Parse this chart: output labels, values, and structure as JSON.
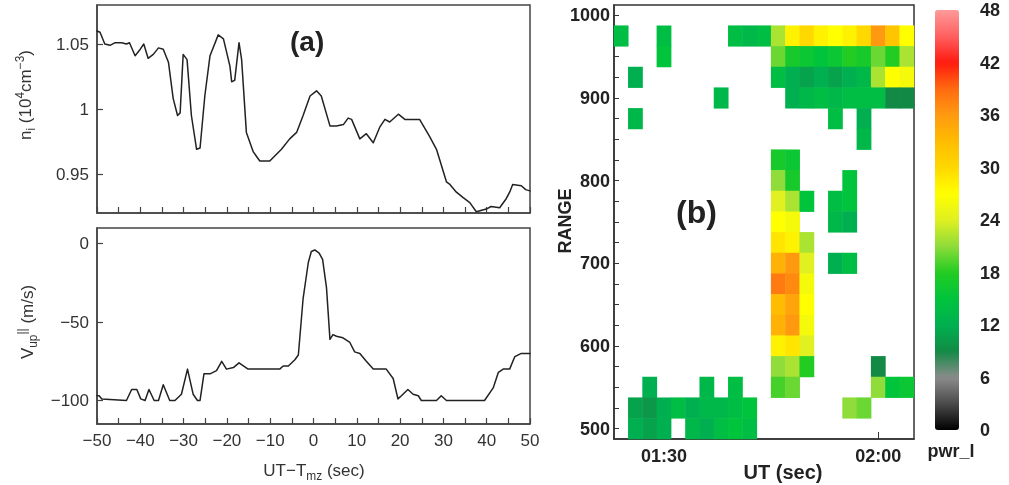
{
  "chart_data": [
    {
      "type": "line",
      "title": "(a)",
      "ylabel": "n$_{i}$ (10$^{4}$cm$^{−3}$)",
      "tick_labels": "y",
      "x": [
        -50,
        -49.3,
        -48.2,
        -47,
        -45.8,
        -44.3,
        -43.2,
        -42.5,
        -41.2,
        -40,
        -39.2,
        -38.2,
        -37,
        -35.8,
        -34.7,
        -33.5,
        -32.4,
        -31.4,
        -30.8,
        -30.1,
        -29.2,
        -28.2,
        -27,
        -26.2,
        -25.1,
        -23.9,
        -22,
        -20.8,
        -19.3,
        -18.9,
        -18.2,
        -17.2,
        -16.6,
        -15.5,
        -13.9,
        -12.4,
        -10.1,
        -7.4,
        -5.5,
        -3.9,
        -2.4,
        -0.8,
        0.7,
        1.8,
        3.8,
        5.3,
        6.9,
        8,
        8.8,
        10.7,
        12.2,
        13.8,
        15.3,
        16.5,
        17.6,
        19.6,
        21.1,
        23,
        24.5,
        26.8,
        28.4,
        30.7,
        31.5,
        33,
        34.5,
        36.1,
        37.6,
        39.9,
        41,
        43,
        44.5,
        45.3,
        46,
        48,
        49,
        50
      ],
      "series": [
        {
          "color": "#222222",
          "values": [
            1.06,
            1.059,
            1.05,
            1.049,
            1.051,
            1.051,
            1.05,
            1.051,
            1.041,
            1.046,
            1.05,
            1.039,
            1.042,
            1.047,
            1.046,
            1.036,
            1.008,
            0.995,
            0.997,
            1.042,
            1.038,
            0.995,
            0.969,
            0.97,
            1.01,
            1.041,
            1.057,
            1.054,
            1.033,
            1.021,
            1.022,
            1.051,
            1.038,
            0.982,
            0.967,
            0.96,
            0.96,
            0.969,
            0.977,
            0.982,
            0.995,
            1.01,
            1.014,
            1.01,
            0.987,
            0.987,
            0.988,
            0.993,
            0.992,
            0.977,
            0.981,
            0.974,
            0.986,
            0.992,
            0.99,
            0.996,
            0.992,
            0.992,
            0.992,
            0.979,
            0.969,
            0.944,
            0.942,
            0.936,
            0.932,
            0.928,
            0.921,
            0.923,
            0.925,
            0.924,
            0.931,
            0.936,
            0.942,
            0.941,
            0.938,
            0.937
          ]
        }
      ],
      "xlim": [
        -50,
        50
      ],
      "ylim": [
        0.92,
        1.08
      ],
      "xticks": [
        -50,
        -45,
        -40,
        -35,
        -30,
        -25,
        -20,
        -15,
        -10,
        -5,
        0,
        5,
        10,
        15,
        20,
        25,
        30,
        35,
        40,
        45,
        50
      ],
      "yticks": [
        0.95,
        1,
        1.05
      ]
    },
    {
      "type": "line",
      "xlabel": "UT−T$_{mz}$ (sec)",
      "ylabel": "V$_{up}$$^{||}$ (m/s)",
      "x": [
        -50,
        -49.5,
        -48.9,
        -43.2,
        -42,
        -40.8,
        -39.9,
        -38.9,
        -38,
        -36.8,
        -35.8,
        -34.7,
        -33.2,
        -32,
        -30.5,
        -29.1,
        -27.8,
        -26.8,
        -26.2,
        -25.3,
        -23.9,
        -22.4,
        -21.2,
        -20.1,
        -18.5,
        -17.2,
        -15.1,
        -7.8,
        -7,
        -5.8,
        -4.3,
        -3.5,
        -2.4,
        -1.2,
        -0.5,
        0.3,
        1.3,
        2.1,
        3,
        3.8,
        4.5,
        5.3,
        6.8,
        8.4,
        9.5,
        10.7,
        12.2,
        13.8,
        16.8,
        18.4,
        19.5,
        20.3,
        21.8,
        23,
        24.2,
        24.9,
        28.4,
        29.5,
        30.7,
        39.5,
        41.5,
        42.7,
        43.8,
        45.3,
        46.5,
        48,
        50
      ],
      "series": [
        {
          "color": "#222222",
          "values": [
            -97,
            -97,
            -99,
            -100,
            -93,
            -93,
            -99,
            -100,
            -93,
            -100,
            -100,
            -90,
            -100,
            -100,
            -96,
            -80,
            -96,
            -100,
            -100,
            -83,
            -83,
            -81,
            -75,
            -80,
            -79,
            -76,
            -80,
            -80,
            -78,
            -78,
            -74,
            -71,
            -35,
            -12,
            -5,
            -4,
            -6,
            -10,
            -28,
            -61,
            -58,
            -59,
            -60,
            -63,
            -69,
            -70,
            -75,
            -80,
            -80,
            -86,
            -99,
            -97,
            -93,
            -96,
            -97,
            -100,
            -100,
            -97,
            -100,
            -100,
            -92,
            -82,
            -80,
            -80,
            -72,
            -70,
            -70
          ]
        }
      ],
      "xlim": [
        -50,
        50
      ],
      "ylim": [
        -115,
        10
      ],
      "xticks": [
        {
          "value": -50,
          "label": "−50"
        },
        {
          "value": -45,
          "label": null
        },
        {
          "value": -40,
          "label": "−40"
        },
        {
          "value": -35,
          "label": null
        },
        {
          "value": -30,
          "label": "−30"
        },
        {
          "value": -25,
          "label": null
        },
        {
          "value": -20,
          "label": "−20"
        },
        {
          "value": -15,
          "label": null
        },
        {
          "value": -10,
          "label": "−10"
        },
        {
          "value": -5,
          "label": null
        },
        0,
        {
          "value": 5,
          "label": null
        },
        10,
        {
          "value": 15,
          "label": null
        },
        20,
        {
          "value": 25,
          "label": null
        },
        30,
        {
          "value": 35,
          "label": null
        },
        40,
        {
          "value": 45,
          "label": null
        },
        50
      ],
      "yticks": [
        {
          "value": -100,
          "label": "−100"
        },
        {
          "value": -50,
          "label": "−50"
        },
        0
      ]
    },
    {
      "type": "heatmap",
      "title": "(b)",
      "xlabel": "UT (sec)",
      "ylabel": "RANGE",
      "clabel": "pwr_l",
      "categories": [
        null,
        null,
        null,
        "01:30",
        null,
        null,
        null,
        null,
        null,
        null,
        null,
        null,
        null,
        null,
        null,
        null,
        null,
        null,
        "02:00",
        null,
        null
      ],
      "y_categories": [
        "1000",
        null,
        null,
        null,
        "900",
        null,
        null,
        null,
        "800",
        null,
        null,
        null,
        "700",
        null,
        null,
        null,
        "600",
        null,
        null,
        null,
        "500"
      ],
      "cells": [
        [
          null,
          null,
          null,
          null,
          null,
          null,
          null,
          null,
          null,
          null,
          null,
          null,
          null,
          null,
          null,
          null,
          null,
          null,
          null,
          null,
          null
        ],
        [
          14,
          null,
          null,
          14,
          null,
          null,
          null,
          null,
          14,
          13,
          14,
          22,
          28,
          30,
          28,
          27,
          28,
          30,
          36,
          32,
          27
        ],
        [
          null,
          null,
          null,
          15,
          null,
          null,
          null,
          null,
          null,
          null,
          null,
          20,
          17,
          16,
          15,
          16,
          18,
          17,
          20,
          18,
          22
        ],
        [
          null,
          12,
          null,
          null,
          null,
          null,
          null,
          null,
          null,
          null,
          null,
          14,
          12,
          11,
          12,
          11,
          12,
          13,
          22,
          27,
          26
        ],
        [
          null,
          null,
          null,
          null,
          null,
          null,
          null,
          13,
          null,
          null,
          null,
          null,
          12,
          13,
          14,
          13,
          14,
          14,
          14,
          9,
          9
        ],
        [
          null,
          13,
          null,
          null,
          null,
          null,
          null,
          null,
          null,
          null,
          null,
          null,
          null,
          null,
          null,
          14,
          null,
          12,
          null,
          null,
          null
        ],
        [
          null,
          null,
          null,
          null,
          null,
          null,
          null,
          null,
          null,
          null,
          null,
          null,
          null,
          null,
          null,
          null,
          null,
          13,
          null,
          null,
          null
        ],
        [
          null,
          null,
          null,
          null,
          null,
          null,
          null,
          null,
          null,
          null,
          null,
          17,
          16,
          null,
          null,
          null,
          null,
          null,
          null,
          null,
          null
        ],
        [
          null,
          null,
          null,
          null,
          null,
          null,
          null,
          null,
          null,
          null,
          null,
          21,
          17,
          null,
          null,
          null,
          15,
          null,
          null,
          null,
          null
        ],
        [
          null,
          null,
          null,
          null,
          null,
          null,
          null,
          null,
          null,
          null,
          null,
          24,
          22,
          15,
          null,
          14,
          15,
          null,
          null,
          null,
          null
        ],
        [
          null,
          null,
          null,
          null,
          null,
          null,
          null,
          null,
          null,
          null,
          null,
          27,
          26,
          null,
          null,
          13,
          12,
          null,
          null,
          null,
          null
        ],
        [
          null,
          null,
          null,
          null,
          null,
          null,
          null,
          null,
          null,
          null,
          null,
          29,
          28,
          22,
          null,
          null,
          null,
          null,
          null,
          null,
          null
        ],
        [
          null,
          null,
          null,
          null,
          null,
          null,
          null,
          null,
          null,
          null,
          null,
          34,
          36,
          24,
          null,
          12,
          14,
          null,
          null,
          null,
          null
        ],
        [
          null,
          null,
          null,
          null,
          null,
          null,
          null,
          null,
          null,
          null,
          null,
          38,
          37,
          26,
          null,
          null,
          null,
          null,
          null,
          null,
          null
        ],
        [
          null,
          null,
          null,
          null,
          null,
          null,
          null,
          null,
          null,
          null,
          null,
          33,
          35,
          27,
          null,
          null,
          null,
          null,
          null,
          null,
          null
        ],
        [
          null,
          null,
          null,
          null,
          null,
          null,
          null,
          null,
          null,
          null,
          null,
          34,
          36,
          26,
          null,
          null,
          null,
          null,
          null,
          null,
          null
        ],
        [
          null,
          null,
          null,
          null,
          null,
          null,
          null,
          null,
          null,
          null,
          null,
          28,
          29,
          24,
          null,
          null,
          null,
          null,
          null,
          null,
          null
        ],
        [
          null,
          null,
          null,
          null,
          null,
          null,
          null,
          null,
          null,
          null,
          null,
          21,
          22,
          18,
          null,
          null,
          null,
          null,
          9,
          null,
          null
        ],
        [
          null,
          null,
          12,
          null,
          null,
          null,
          13,
          null,
          14,
          null,
          null,
          19,
          20,
          null,
          null,
          null,
          null,
          null,
          21,
          15,
          16
        ],
        [
          null,
          11,
          10,
          12,
          14,
          12,
          13,
          13,
          14,
          15,
          null,
          null,
          null,
          null,
          null,
          null,
          21,
          20,
          null,
          null,
          null
        ],
        [
          null,
          12,
          11,
          12,
          null,
          13,
          12,
          14,
          15,
          14,
          null,
          null,
          null,
          null,
          null,
          null,
          null,
          null,
          null,
          null,
          null
        ]
      ],
      "clim": [
        0,
        48
      ],
      "cticks": [
        0,
        6,
        12,
        18,
        24,
        30,
        36,
        42,
        48
      ]
    }
  ]
}
